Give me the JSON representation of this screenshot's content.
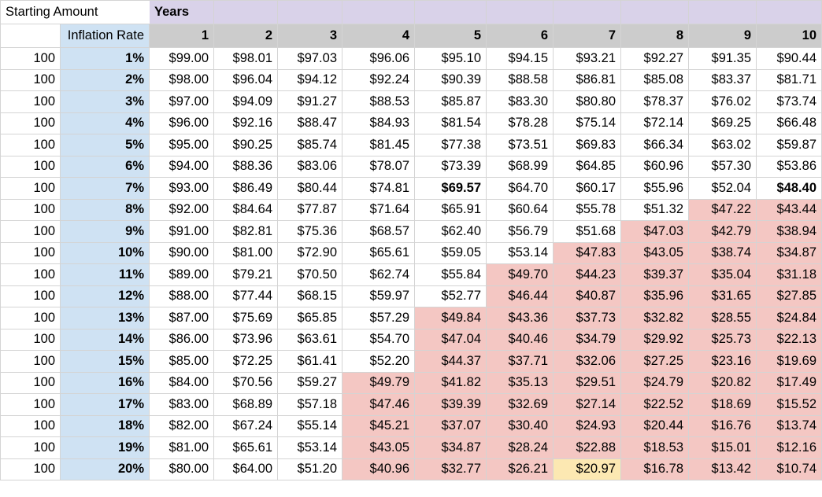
{
  "header": {
    "starting_amount_label": "Starting Amount",
    "years_label": "Years",
    "inflation_rate_label": "Inflation Rate",
    "years": [
      "1",
      "2",
      "3",
      "4",
      "5",
      "6",
      "7",
      "8",
      "9",
      "10"
    ]
  },
  "rows": [
    {
      "amount": "100",
      "rate": "1%",
      "values": [
        "$99.00",
        "$98.01",
        "$97.03",
        "$96.06",
        "$95.10",
        "$94.15",
        "$93.21",
        "$92.27",
        "$91.35",
        "$90.44"
      ]
    },
    {
      "amount": "100",
      "rate": "2%",
      "values": [
        "$98.00",
        "$96.04",
        "$94.12",
        "$92.24",
        "$90.39",
        "$88.58",
        "$86.81",
        "$85.08",
        "$83.37",
        "$81.71"
      ]
    },
    {
      "amount": "100",
      "rate": "3%",
      "values": [
        "$97.00",
        "$94.09",
        "$91.27",
        "$88.53",
        "$85.87",
        "$83.30",
        "$80.80",
        "$78.37",
        "$76.02",
        "$73.74"
      ]
    },
    {
      "amount": "100",
      "rate": "4%",
      "values": [
        "$96.00",
        "$92.16",
        "$88.47",
        "$84.93",
        "$81.54",
        "$78.28",
        "$75.14",
        "$72.14",
        "$69.25",
        "$66.48"
      ]
    },
    {
      "amount": "100",
      "rate": "5%",
      "values": [
        "$95.00",
        "$90.25",
        "$85.74",
        "$81.45",
        "$77.38",
        "$73.51",
        "$69.83",
        "$66.34",
        "$63.02",
        "$59.87"
      ]
    },
    {
      "amount": "100",
      "rate": "6%",
      "values": [
        "$94.00",
        "$88.36",
        "$83.06",
        "$78.07",
        "$73.39",
        "$68.99",
        "$64.85",
        "$60.96",
        "$57.30",
        "$53.86"
      ]
    },
    {
      "amount": "100",
      "rate": "7%",
      "values": [
        "$93.00",
        "$86.49",
        "$80.44",
        "$74.81",
        "$69.57",
        "$64.70",
        "$60.17",
        "$55.96",
        "$52.04",
        "$48.40"
      ]
    },
    {
      "amount": "100",
      "rate": "8%",
      "values": [
        "$92.00",
        "$84.64",
        "$77.87",
        "$71.64",
        "$65.91",
        "$60.64",
        "$55.78",
        "$51.32",
        "$47.22",
        "$43.44"
      ]
    },
    {
      "amount": "100",
      "rate": "9%",
      "values": [
        "$91.00",
        "$82.81",
        "$75.36",
        "$68.57",
        "$62.40",
        "$56.79",
        "$51.68",
        "$47.03",
        "$42.79",
        "$38.94"
      ]
    },
    {
      "amount": "100",
      "rate": "10%",
      "values": [
        "$90.00",
        "$81.00",
        "$72.90",
        "$65.61",
        "$59.05",
        "$53.14",
        "$47.83",
        "$43.05",
        "$38.74",
        "$34.87"
      ]
    },
    {
      "amount": "100",
      "rate": "11%",
      "values": [
        "$89.00",
        "$79.21",
        "$70.50",
        "$62.74",
        "$55.84",
        "$49.70",
        "$44.23",
        "$39.37",
        "$35.04",
        "$31.18"
      ]
    },
    {
      "amount": "100",
      "rate": "12%",
      "values": [
        "$88.00",
        "$77.44",
        "$68.15",
        "$59.97",
        "$52.77",
        "$46.44",
        "$40.87",
        "$35.96",
        "$31.65",
        "$27.85"
      ]
    },
    {
      "amount": "100",
      "rate": "13%",
      "values": [
        "$87.00",
        "$75.69",
        "$65.85",
        "$57.29",
        "$49.84",
        "$43.36",
        "$37.73",
        "$32.82",
        "$28.55",
        "$24.84"
      ]
    },
    {
      "amount": "100",
      "rate": "14%",
      "values": [
        "$86.00",
        "$73.96",
        "$63.61",
        "$54.70",
        "$47.04",
        "$40.46",
        "$34.79",
        "$29.92",
        "$25.73",
        "$22.13"
      ]
    },
    {
      "amount": "100",
      "rate": "15%",
      "values": [
        "$85.00",
        "$72.25",
        "$61.41",
        "$52.20",
        "$44.37",
        "$37.71",
        "$32.06",
        "$27.25",
        "$23.16",
        "$19.69"
      ]
    },
    {
      "amount": "100",
      "rate": "16%",
      "values": [
        "$84.00",
        "$70.56",
        "$59.27",
        "$49.79",
        "$41.82",
        "$35.13",
        "$29.51",
        "$24.79",
        "$20.82",
        "$17.49"
      ]
    },
    {
      "amount": "100",
      "rate": "17%",
      "values": [
        "$83.00",
        "$68.89",
        "$57.18",
        "$47.46",
        "$39.39",
        "$32.69",
        "$27.14",
        "$22.52",
        "$18.69",
        "$15.52"
      ]
    },
    {
      "amount": "100",
      "rate": "18%",
      "values": [
        "$82.00",
        "$67.24",
        "$55.14",
        "$45.21",
        "$37.07",
        "$30.40",
        "$24.93",
        "$20.44",
        "$16.76",
        "$13.74"
      ]
    },
    {
      "amount": "100",
      "rate": "19%",
      "values": [
        "$81.00",
        "$65.61",
        "$53.14",
        "$43.05",
        "$34.87",
        "$28.24",
        "$22.88",
        "$18.53",
        "$15.01",
        "$12.16"
      ]
    },
    {
      "amount": "100",
      "rate": "20%",
      "values": [
        "$80.00",
        "$64.00",
        "$51.20",
        "$40.96",
        "$32.77",
        "$26.21",
        "$20.97",
        "$16.78",
        "$13.42",
        "$10.74"
      ]
    }
  ],
  "highlight_colors": {
    "below_half": "#f4c7c3",
    "half_marker": "#fce8b2",
    "rate_column": "#cfe2f3",
    "years_header": "#d9d2e9",
    "year_numbers": "#cccccc"
  }
}
